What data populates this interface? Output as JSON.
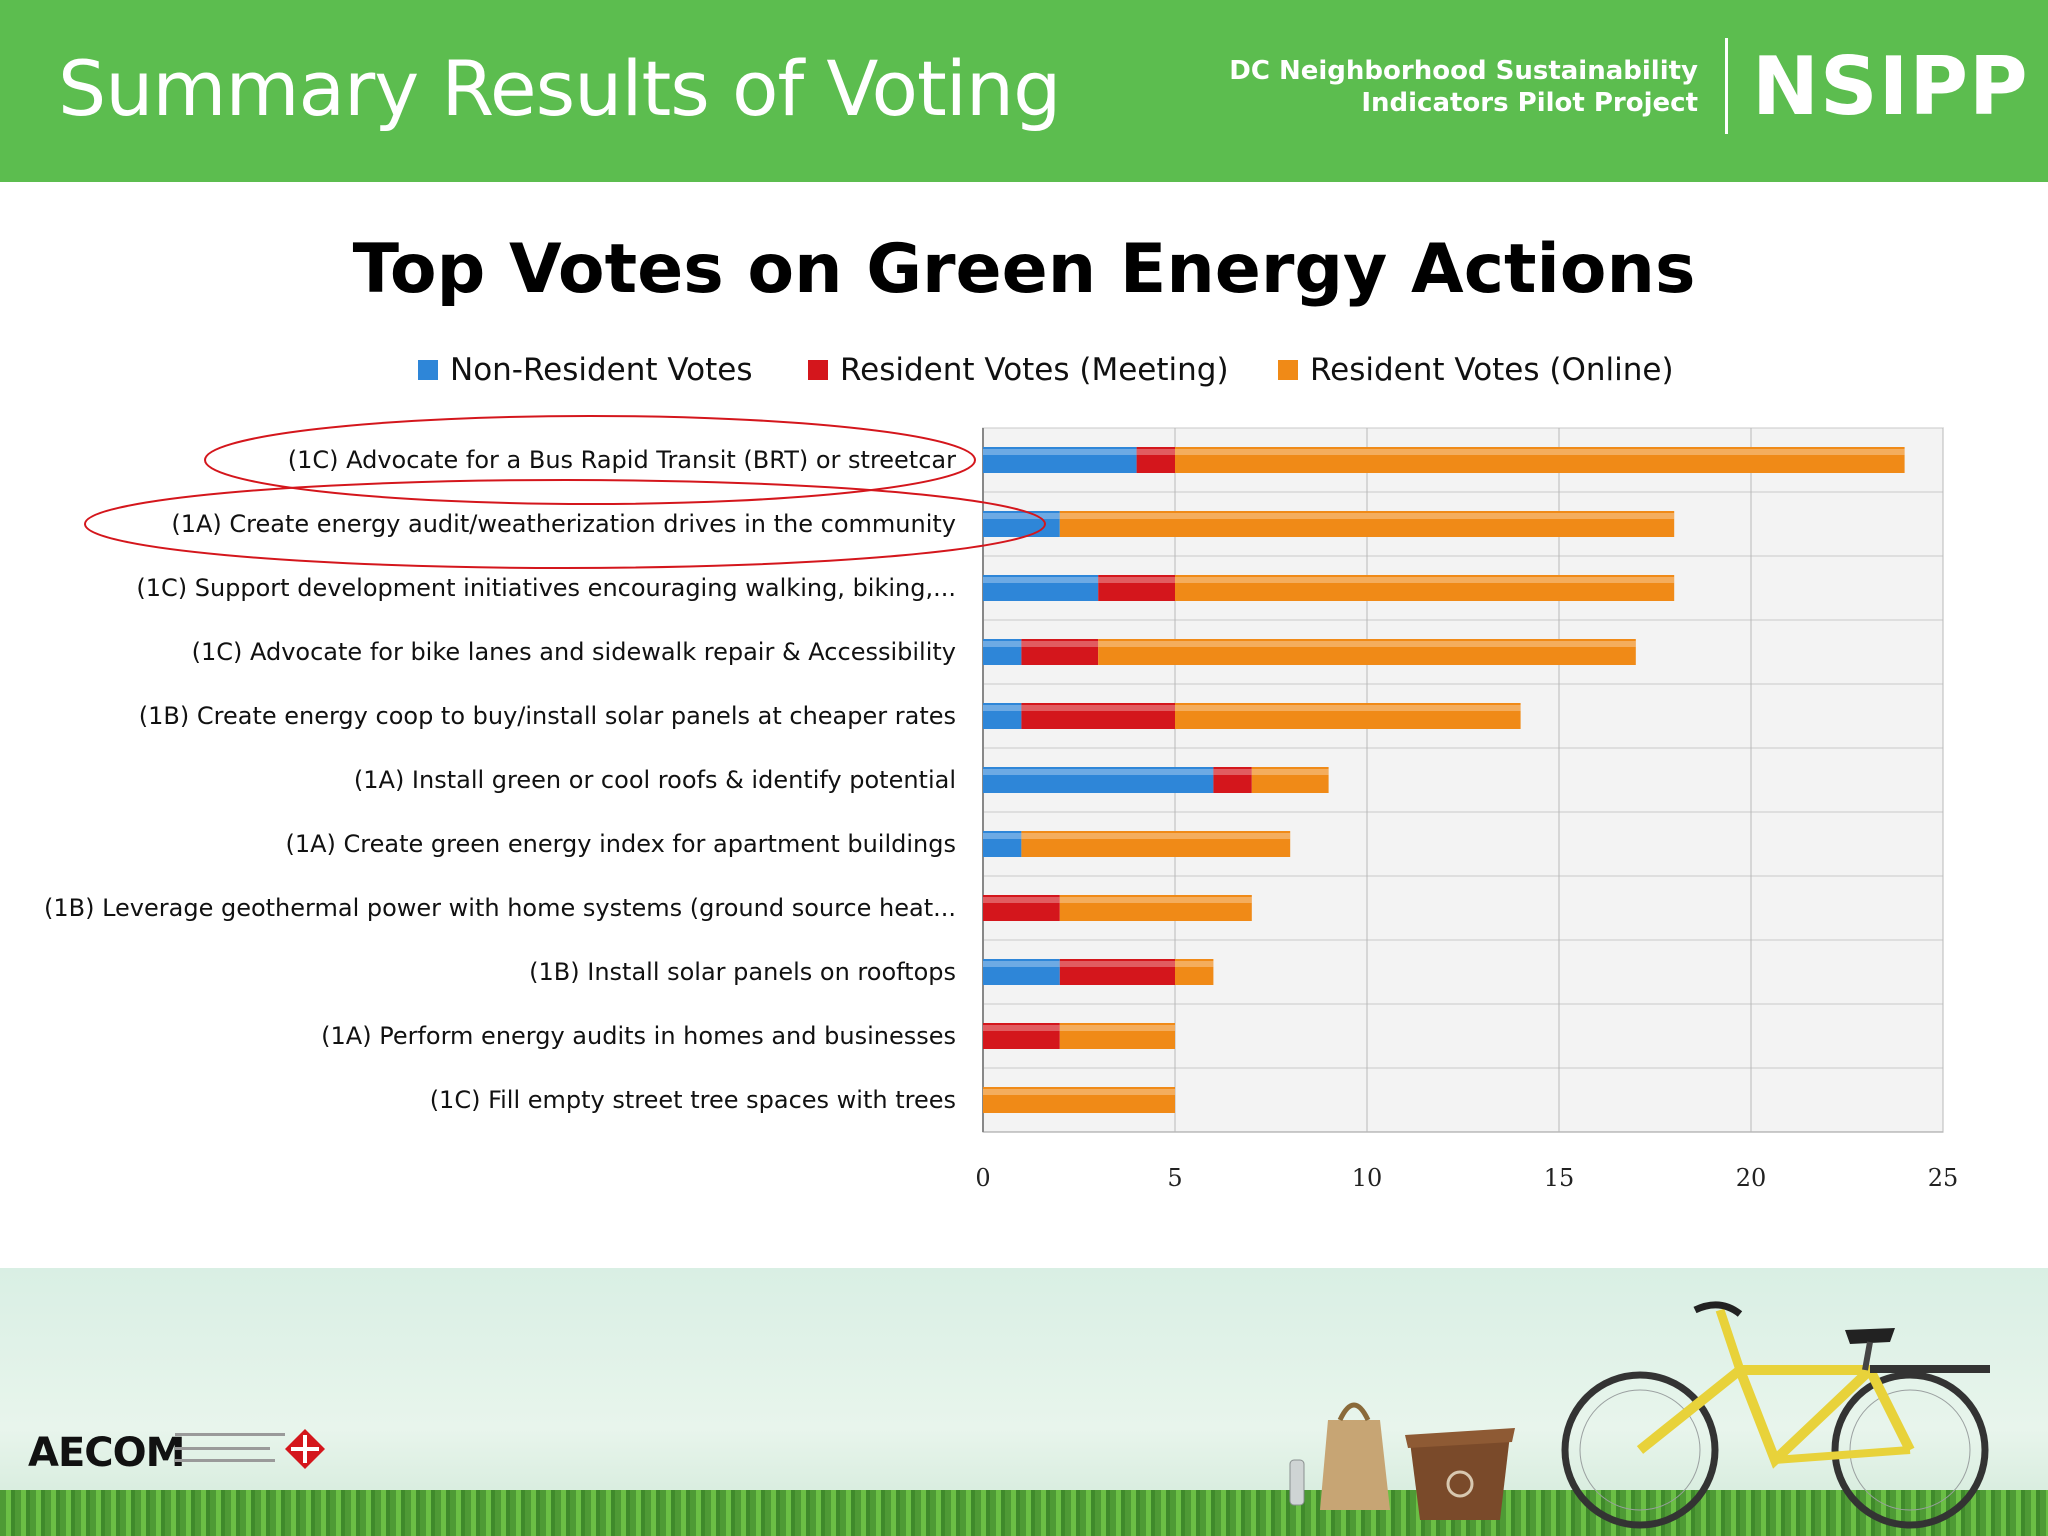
{
  "header": {
    "title": "Summary Results of Voting",
    "org_line1": "DC Neighborhood Sustainability",
    "org_line2": "Indicators Pilot Project",
    "logo": "NSIPP",
    "background_color": "#5cbd4f"
  },
  "footer": {
    "aecom_logo": "AECOM"
  },
  "chart_data": {
    "type": "bar",
    "orientation": "horizontal",
    "stacked": true,
    "title": "Top Votes on Green Energy Actions",
    "legend_position": "top",
    "xlim": [
      0,
      25
    ],
    "xticks": [
      0,
      5,
      10,
      15,
      20,
      25
    ],
    "grid": true,
    "categories": [
      "(1C) Advocate for a Bus Rapid Transit (BRT) or streetcar",
      "(1A) Create energy audit/weatherization drives in the community",
      "(1C) Support development initiatives encouraging walking, biking,...",
      "(1C) Advocate for bike lanes and sidewalk repair & Accessibility",
      "(1B) Create energy coop to buy/install solar panels at cheaper rates",
      "(1A) Install green or cool roofs & identify potential",
      "(1A) Create green energy index for apartment buildings",
      "(1B) Leverage geothermal power with home systems (ground source heat...",
      "(1B) Install solar panels on rooftops",
      "(1A) Perform energy audits in homes and businesses",
      "(1C) Fill empty street tree spaces with trees"
    ],
    "highlighted": [
      0,
      1
    ],
    "series": [
      {
        "name": "Non-Resident Votes",
        "color": "#2e86d8",
        "values": [
          4,
          2,
          3,
          1,
          1,
          6,
          1,
          0,
          2,
          0,
          0
        ]
      },
      {
        "name": "Resident Votes (Meeting)",
        "color": "#d4161c",
        "values": [
          1,
          0,
          2,
          2,
          4,
          1,
          0,
          2,
          3,
          2,
          0
        ]
      },
      {
        "name": "Resident Votes (Online)",
        "color": "#f08a17",
        "values": [
          19,
          16,
          13,
          14,
          9,
          2,
          7,
          5,
          1,
          3,
          5
        ]
      }
    ]
  }
}
